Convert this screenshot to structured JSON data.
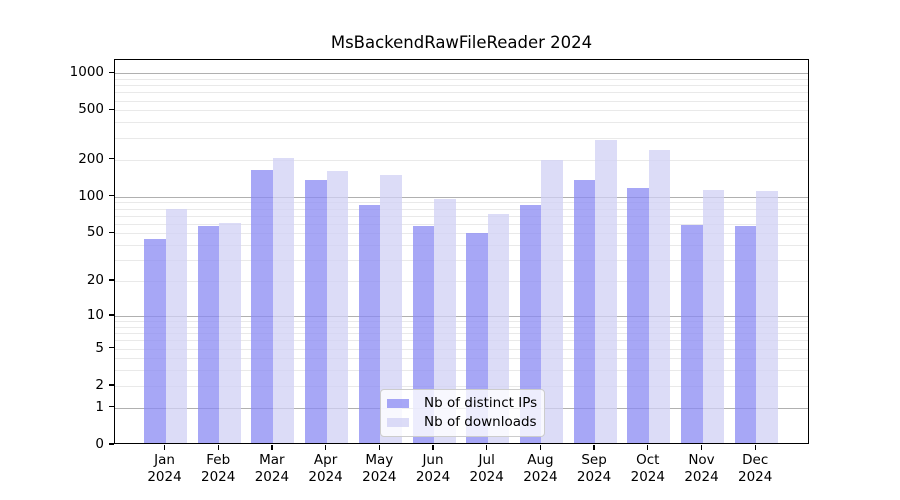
{
  "chart_data": {
    "type": "bar",
    "title": "MsBackendRawFileReader 2024",
    "categories": [
      "Jan 2024",
      "Feb 2024",
      "Mar 2024",
      "Apr 2024",
      "May 2024",
      "Jun 2024",
      "Jul 2024",
      "Aug 2024",
      "Sep 2024",
      "Oct 2024",
      "Nov 2024",
      "Dec 2024"
    ],
    "series": [
      {
        "name": "Nb of distinct IPs",
        "color": "#a7a7f6",
        "values": [
          43,
          55,
          158,
          131,
          83,
          55,
          49,
          82,
          131,
          114,
          57,
          55
        ]
      },
      {
        "name": "Nb of downloads",
        "color": "#dcdcf7",
        "values": [
          77,
          59,
          198,
          157,
          146,
          93,
          70,
          190,
          280,
          232,
          110,
          108
        ]
      }
    ],
    "yscale": "log10(1+x)",
    "yticks": [
      0,
      1,
      2,
      5,
      10,
      20,
      50,
      100,
      200,
      500,
      1000
    ],
    "ylim": [
      0,
      1290
    ],
    "grid": "horizontal, minor light + major gray at powers of ten",
    "legend_position": "lower center",
    "colors": {
      "major_gridline": "#b0b0b0",
      "minor_gridline": "#e9e9e9",
      "axis": "#000000",
      "legend_border": "#cccccc"
    }
  }
}
